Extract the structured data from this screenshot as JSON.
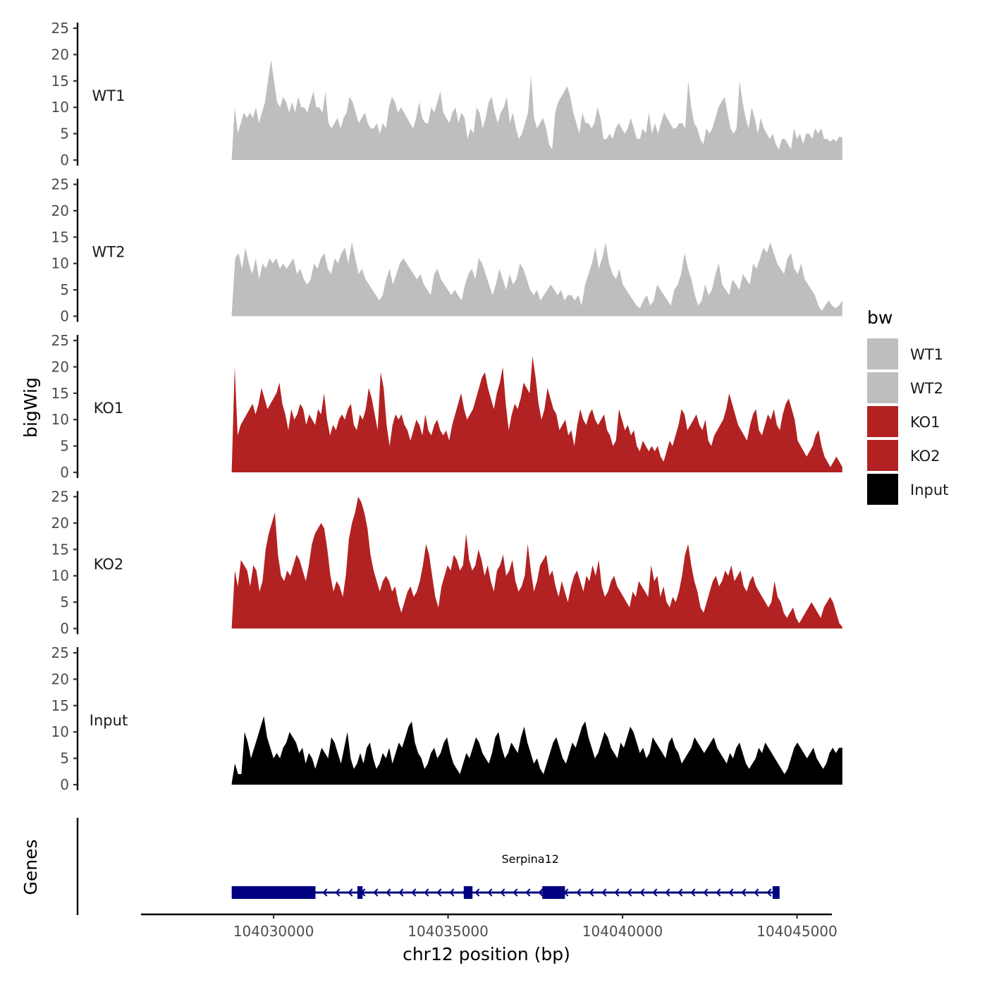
{
  "chart_data": {
    "type": "area",
    "title": "",
    "xlabel": "chr12 position (bp)",
    "ylabel": "bigWig",
    "genes_ylabel": "Genes",
    "xlim": [
      104026200,
      104046000
    ],
    "xticks": [
      104030000,
      104035000,
      104040000,
      104045000
    ],
    "xtick_labels": [
      "104030000",
      "104035000",
      "104040000",
      "104045000"
    ],
    "ylim": [
      0,
      25
    ],
    "yticks": [
      0,
      5,
      10,
      15,
      20,
      25
    ],
    "ytick_labels": [
      "0",
      "5",
      "10",
      "15",
      "20",
      "25"
    ],
    "legend": {
      "title": "bw",
      "placement": "right",
      "entries": [
        {
          "label": "WT1",
          "color": "#bebebe"
        },
        {
          "label": "WT2",
          "color": "#bebebe"
        },
        {
          "label": "KO1",
          "color": "#b22222"
        },
        {
          "label": "KO2",
          "color": "#b22222"
        },
        {
          "label": "Input",
          "color": "#000000"
        }
      ]
    },
    "x_start": 104028800,
    "x_end": 104046300,
    "series": [
      {
        "name": "WT1",
        "color": "#bebebe",
        "values": [
          0.3,
          10,
          5,
          7,
          9,
          8,
          9,
          8,
          10,
          7,
          9,
          11,
          15,
          19,
          15,
          11,
          10,
          12,
          11,
          9,
          11,
          9,
          12,
          10,
          10,
          9,
          11,
          13,
          10,
          10,
          9,
          13,
          7,
          6,
          7,
          8,
          6,
          8,
          9,
          12,
          11,
          9,
          7,
          8,
          9,
          7,
          6,
          6,
          7,
          5,
          7,
          6,
          10,
          12,
          11,
          9,
          10,
          9,
          8,
          7,
          6,
          8,
          11,
          8,
          7,
          7,
          10,
          9,
          11,
          13,
          9,
          8,
          7,
          9,
          10,
          7,
          9,
          8,
          4,
          6,
          5,
          10,
          9,
          6,
          8,
          11,
          12,
          9,
          7,
          9,
          10,
          12,
          7,
          9,
          6,
          4,
          5,
          7,
          9,
          16,
          8,
          6,
          7,
          8,
          6,
          3,
          2,
          9,
          11,
          12,
          13,
          14,
          12,
          9,
          7,
          5,
          9,
          7,
          7,
          6,
          7,
          10,
          8,
          4,
          4,
          5,
          4,
          6,
          7,
          6,
          5,
          6,
          8,
          6,
          4,
          4,
          6,
          5,
          9,
          5,
          7,
          5,
          7,
          9,
          8,
          7,
          6,
          6,
          7,
          7,
          6,
          15,
          10,
          7,
          6,
          4,
          3,
          6,
          5,
          6,
          8,
          10,
          11,
          12,
          9,
          6,
          5,
          6,
          15,
          11,
          8,
          6,
          10,
          8,
          5,
          8,
          6,
          5,
          4,
          5,
          3,
          2,
          4,
          4,
          3,
          2,
          6,
          4,
          5,
          3,
          5,
          5,
          4,
          6,
          5,
          6,
          4,
          4,
          3.5,
          4,
          3.5,
          4.5,
          4.2
        ],
        "axis_label": "WT1"
      },
      {
        "name": "WT2",
        "color": "#bebebe",
        "values": [
          0.5,
          11,
          12,
          9,
          13,
          10,
          8,
          11,
          7,
          10,
          9,
          11,
          10,
          11,
          9,
          10,
          9,
          10,
          11,
          8,
          9,
          7,
          6,
          7,
          10,
          9,
          11,
          12,
          9,
          8,
          11,
          10,
          12,
          13,
          10,
          14,
          11,
          8,
          9,
          7,
          6,
          5,
          4,
          3,
          4,
          7,
          9,
          6,
          8,
          10,
          11,
          10,
          9,
          8,
          7,
          8,
          6,
          5,
          4,
          8,
          9,
          7,
          6,
          5,
          4,
          5,
          4,
          3,
          6,
          8,
          9,
          7,
          11,
          10,
          8,
          6,
          4,
          6,
          9,
          7,
          5,
          8,
          6,
          7,
          10,
          9,
          7,
          5,
          4,
          5,
          3,
          4,
          5,
          6,
          5,
          4,
          5,
          3,
          4,
          4,
          3,
          4,
          2,
          6,
          8,
          10,
          13,
          9,
          11,
          14,
          10,
          8,
          7,
          9,
          6,
          5,
          4,
          3,
          2,
          1.5,
          3,
          4,
          2,
          3,
          6,
          5,
          4,
          3,
          2,
          5,
          6,
          8,
          12,
          9,
          7,
          4,
          2,
          3,
          6,
          4,
          5,
          8,
          10,
          6,
          5,
          4,
          7,
          6,
          5,
          8,
          7,
          6,
          10,
          9,
          11,
          13,
          12,
          14,
          12,
          10,
          9,
          8,
          11,
          12,
          9,
          8,
          10,
          7,
          6,
          5,
          4,
          2,
          1,
          2,
          3,
          2,
          1.5,
          2,
          3
        ],
        "axis_label": "WT2"
      },
      {
        "name": "KO1",
        "color": "#b22222",
        "values": [
          0.5,
          20,
          7,
          9,
          10,
          11,
          12,
          13,
          11,
          13,
          16,
          14,
          12,
          13,
          14,
          15,
          17,
          13,
          11,
          8,
          12,
          10,
          11,
          13,
          12,
          9,
          11,
          10,
          9,
          12,
          11,
          15,
          10,
          7,
          9,
          8,
          10,
          11,
          10,
          12,
          13,
          9,
          8,
          11,
          10,
          12,
          16,
          14,
          11,
          8,
          19,
          16,
          9,
          5,
          9,
          11,
          10,
          11,
          9,
          8,
          6,
          8,
          10,
          9,
          7,
          11,
          8,
          7,
          9,
          10,
          8,
          7,
          8,
          6,
          9,
          11,
          13,
          15,
          12,
          10,
          11,
          12,
          14,
          16,
          18,
          19,
          16,
          14,
          12,
          15,
          17,
          20,
          13,
          8,
          11,
          13,
          12,
          14,
          17,
          16,
          15,
          22,
          18,
          13,
          10,
          12,
          16,
          14,
          12,
          11,
          8,
          9,
          10,
          7,
          8,
          5,
          9,
          12,
          10,
          9,
          11,
          12,
          10,
          9,
          10,
          11,
          8,
          7,
          5,
          6,
          12,
          10,
          8,
          9,
          7,
          8,
          5,
          4,
          6,
          5,
          4,
          5,
          4,
          5,
          3,
          2,
          4,
          6,
          5,
          7,
          9,
          12,
          11,
          8,
          9,
          10,
          11,
          9,
          8,
          10,
          6,
          5,
          7,
          8,
          9,
          10,
          12,
          15,
          13,
          11,
          9,
          8,
          7,
          6,
          9,
          11,
          12,
          8,
          7,
          9,
          11,
          10,
          12,
          9,
          8,
          11,
          13,
          14,
          12,
          10,
          6,
          5,
          4,
          3,
          4,
          5,
          7,
          8,
          5,
          3,
          2,
          1,
          2,
          3,
          2,
          1
        ],
        "axis_label": "KO1"
      },
      {
        "name": "KO2",
        "color": "#b22222",
        "values": [
          0.3,
          11,
          8,
          13,
          12,
          11,
          8,
          12,
          11,
          7,
          9,
          15,
          18,
          20,
          22,
          14,
          10,
          9,
          11,
          10,
          12,
          14,
          13,
          11,
          9,
          12,
          16,
          18,
          19,
          20,
          19,
          15,
          10,
          7,
          9,
          8,
          6,
          10,
          17,
          20,
          22,
          25,
          24,
          22,
          19,
          14,
          11,
          9,
          7,
          9,
          10,
          9,
          7,
          8,
          5,
          3,
          5,
          7,
          8,
          6,
          7,
          9,
          12,
          16,
          14,
          10,
          6,
          4,
          8,
          10,
          12,
          11,
          14,
          13,
          11,
          12,
          18,
          13,
          11,
          12,
          15,
          13,
          10,
          12,
          9,
          7,
          11,
          12,
          14,
          10,
          11,
          13,
          9,
          7,
          8,
          10,
          16,
          11,
          7,
          9,
          12,
          13,
          14,
          10,
          11,
          8,
          6,
          9,
          7,
          5,
          8,
          10,
          11,
          9,
          7,
          10,
          9,
          12,
          10,
          13,
          8,
          6,
          7,
          9,
          10,
          8,
          7,
          6,
          5,
          4,
          7,
          6,
          9,
          8,
          7,
          6,
          12,
          9,
          10,
          6,
          8,
          5,
          4,
          6,
          5,
          7,
          10,
          14,
          16,
          12,
          9,
          7,
          4,
          3,
          5,
          7,
          9,
          10,
          8,
          9,
          11,
          10,
          12,
          9,
          10,
          11,
          8,
          7,
          9,
          10,
          8,
          7,
          6,
          5,
          4,
          5,
          9,
          6,
          5,
          3,
          2,
          3,
          4,
          2,
          1,
          2,
          3,
          4,
          5,
          4,
          3,
          2,
          4,
          5,
          6,
          5,
          3,
          1,
          0.3
        ],
        "axis_label": "KO2"
      },
      {
        "name": "Input",
        "color": "#000000",
        "values": [
          0.3,
          4,
          2,
          2,
          10,
          8,
          5,
          7,
          9,
          11,
          13,
          9,
          7,
          5,
          6,
          5,
          7,
          8,
          10,
          9,
          8,
          6,
          7,
          4,
          6,
          5,
          3,
          5,
          7,
          6,
          5,
          9,
          8,
          6,
          4,
          7,
          10,
          5,
          3,
          4,
          6,
          4,
          7,
          8,
          5,
          3,
          4,
          6,
          5,
          7,
          4,
          6,
          8,
          7,
          9,
          11,
          12,
          8,
          6,
          5,
          3,
          4,
          6,
          7,
          5,
          6,
          8,
          9,
          6,
          4,
          3,
          2,
          4,
          6,
          5,
          7,
          9,
          8,
          6,
          5,
          4,
          6,
          9,
          10,
          7,
          5,
          6,
          8,
          7,
          6,
          9,
          11,
          8,
          6,
          4,
          5,
          3,
          2,
          4,
          6,
          8,
          9,
          7,
          5,
          4,
          6,
          8,
          7,
          9,
          11,
          12,
          9,
          7,
          5,
          6,
          8,
          10,
          9,
          7,
          6,
          5,
          8,
          7,
          9,
          11,
          10,
          8,
          6,
          7,
          5,
          6,
          9,
          8,
          7,
          6,
          5,
          8,
          9,
          7,
          6,
          4,
          5,
          6,
          7,
          9,
          8,
          7,
          6,
          7,
          8,
          9,
          7,
          6,
          5,
          4,
          6,
          5,
          7,
          8,
          6,
          4,
          3,
          4,
          5,
          7,
          6,
          8,
          7,
          6,
          5,
          4,
          3,
          2,
          3,
          5,
          7,
          8,
          7,
          6,
          5,
          6,
          7,
          5,
          4,
          3,
          4,
          6,
          7,
          6,
          7,
          7
        ]
      }
    ],
    "genes": [
      {
        "name": "Serpina12",
        "strand": "-",
        "color": "#000080",
        "start": 104028800,
        "end": 104044500,
        "exons": [
          {
            "start": 104028800,
            "end": 104031200
          },
          {
            "start": 104032400,
            "end": 104032550
          },
          {
            "start": 104035450,
            "end": 104035700
          },
          {
            "start": 104037700,
            "end": 104038350
          },
          {
            "start": 104044300,
            "end": 104044500
          }
        ]
      }
    ]
  }
}
